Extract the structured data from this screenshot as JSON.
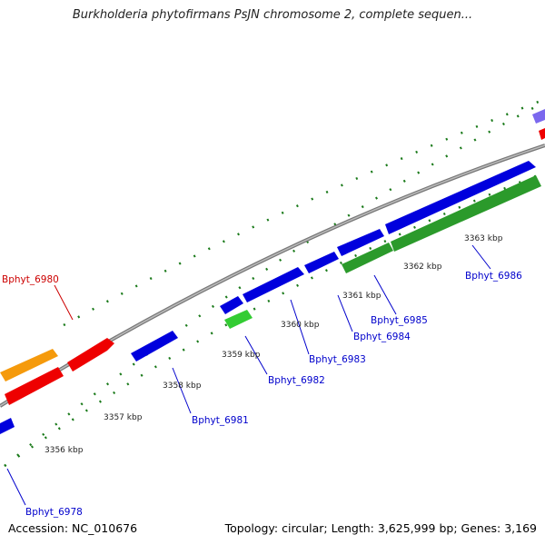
{
  "title": "Burkholderia phytofirmans PsJN chromosome 2, complete sequen...",
  "footer": {
    "accession": "Accession: NC_010676",
    "summary": "Topology: circular; Length: 3,625,999 bp; Genes: 3,169"
  },
  "colors": {
    "backbone": "#888888",
    "tick_major": "#1a7a1a",
    "label_blue": "#0000cc",
    "label_red": "#cc0000",
    "gene_blue": "#0000dd",
    "gene_red": "#ee0000",
    "gene_orange": "#f59a0c",
    "gene_green": "#33cc33",
    "gene_dark_green": "#2b9a2b",
    "gene_purple": "#7b68ee"
  },
  "position_labels": [
    "3356 kbp",
    "3357 kbp",
    "3358 kbp",
    "3359 kbp",
    "3360 kbp",
    "3361 kbp",
    "3362 kbp",
    "3363 kbp"
  ],
  "gene_labels": [
    {
      "text": "Bphyt_6978",
      "color": "blue"
    },
    {
      "text": "Bphyt_6980",
      "color": "red"
    },
    {
      "text": "Bphyt_6981",
      "color": "blue"
    },
    {
      "text": "Bphyt_6982",
      "color": "blue"
    },
    {
      "text": "Bphyt_6983",
      "color": "blue"
    },
    {
      "text": "Bphyt_6984",
      "color": "blue"
    },
    {
      "text": "Bphyt_6985",
      "color": "blue"
    },
    {
      "text": "Bphyt_6986",
      "color": "blue"
    }
  ]
}
